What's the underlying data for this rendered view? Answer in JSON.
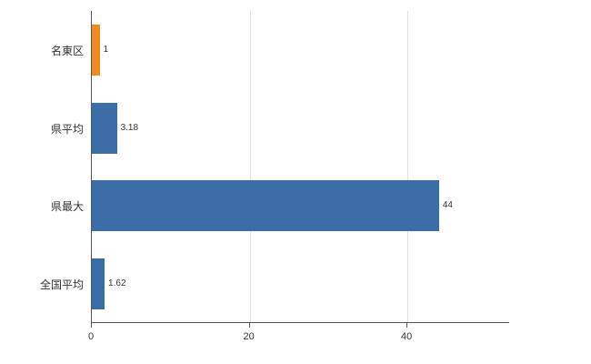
{
  "chart_data": {
    "type": "bar",
    "orientation": "horizontal",
    "title": "",
    "xlabel": "",
    "ylabel": "",
    "categories": [
      "名東区",
      "県平均",
      "県最大",
      "全国平均"
    ],
    "values": [
      1,
      3.18,
      44,
      1.62
    ],
    "value_labels": [
      "1",
      "3.18",
      "44",
      "1.62"
    ],
    "bar_colors": [
      "#f08a24",
      "#3d6da6",
      "#3d6da6",
      "#3d6da6"
    ],
    "x_ticks": [
      0,
      20,
      40
    ],
    "x_tick_labels": [
      "0",
      "20",
      "40"
    ],
    "xlim": [
      0,
      53
    ],
    "grid": true,
    "legend": false
  },
  "colors": {
    "grid": "#e2e2e2",
    "axis": "#555555",
    "text": "#333333"
  }
}
